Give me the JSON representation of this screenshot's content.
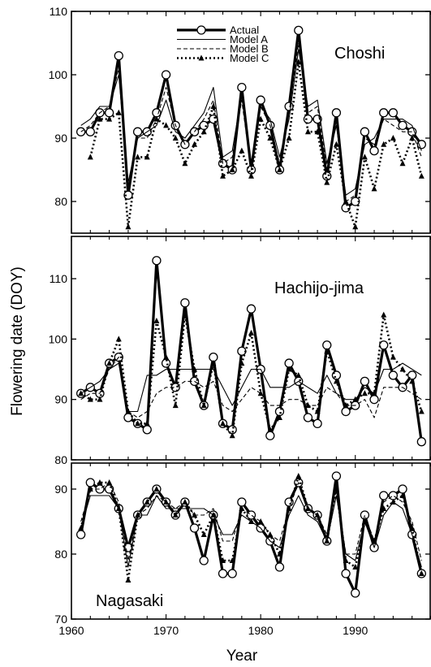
{
  "chart_data": {
    "type": "line",
    "xlabel": "Year",
    "ylabel": "Flowering date (DOY)",
    "xlim": [
      1960,
      1998
    ],
    "x_ticks": [
      1960,
      1970,
      1980,
      1990
    ],
    "x_tick_labels": [
      "1960",
      "1970",
      "1980",
      "1990"
    ],
    "legend": {
      "placement": "top-left",
      "entries": [
        "Actual",
        "Model A",
        "Model B",
        "Model C"
      ]
    },
    "years": [
      1961,
      1962,
      1963,
      1964,
      1965,
      1966,
      1967,
      1968,
      1969,
      1970,
      1971,
      1972,
      1973,
      1974,
      1975,
      1976,
      1977,
      1978,
      1979,
      1980,
      1981,
      1982,
      1983,
      1984,
      1985,
      1986,
      1987,
      1988,
      1989,
      1990,
      1991,
      1992,
      1993,
      1994,
      1995,
      1996,
      1997
    ],
    "panels": [
      {
        "label": "Choshi",
        "ylim": [
          75,
          110
        ],
        "y_ticks": [
          80,
          90,
          100,
          110
        ],
        "y_tick_labels": [
          "80",
          "90",
          "100",
          "110"
        ],
        "series": [
          {
            "name": "Actual",
            "values": [
              91,
              91,
              94,
              94,
              103,
              81,
              91,
              91,
              94,
              100,
              92,
              89,
              91,
              92,
              93,
              86,
              85,
              98,
              85,
              96,
              92,
              85,
              95,
              107,
              93,
              93,
              84,
              94,
              79,
              80,
              91,
              88,
              94,
              94,
              92,
              91,
              89
            ]
          },
          {
            "name": "Model A",
            "values": [
              92,
              93,
              95,
              95,
              100,
              83,
              90,
              91,
              92,
              96,
              91,
              90,
              92,
              94,
              98,
              87,
              88,
              97,
              86,
              95,
              93,
              87,
              93,
              104,
              95,
              96,
              86,
              92,
              81,
              82,
              89,
              90,
              93,
              93,
              93,
              92,
              88
            ]
          },
          {
            "name": "Model B",
            "values": [
              91,
              92,
              94,
              95,
              101,
              82,
              90,
              90,
              93,
              98,
              92,
              89,
              91,
              93,
              96,
              86,
              87,
              96,
              85,
              95,
              92,
              86,
              94,
              105,
              94,
              95,
              85,
              93,
              80,
              81,
              90,
              89,
              93,
              92,
              91,
              91,
              87
            ]
          },
          {
            "name": "Model C",
            "values": [
              null,
              87,
              93,
              93,
              94,
              76,
              87,
              87,
              93,
              92,
              90,
              86,
              89,
              91,
              95,
              84,
              85,
              88,
              84,
              93,
              90,
              85,
              90,
              102,
              91,
              91,
              83,
              89,
              80,
              76,
              87,
              82,
              89,
              90,
              86,
              90,
              84
            ]
          }
        ]
      },
      {
        "label": "Hachijo-jima",
        "ylim": [
          80,
          117
        ],
        "y_ticks": [
          80,
          90,
          100,
          110
        ],
        "y_tick_labels": [
          "80",
          "90",
          "100",
          "110"
        ],
        "series": [
          {
            "name": "Actual",
            "values": [
              91,
              92,
              91,
              96,
              97,
              87,
              86,
              85,
              113,
              96,
              92,
              106,
              93,
              89,
              97,
              86,
              85,
              98,
              105,
              95,
              84,
              88,
              96,
              93,
              87,
              86,
              99,
              94,
              88,
              89,
              93,
              90,
              99,
              94,
              92,
              94,
              83
            ]
          },
          {
            "name": "Model A",
            "values": [
              91,
              92,
              93,
              95,
              96,
              88,
              88,
              94,
              94,
              95,
              95,
              95,
              95,
              95,
              95,
              92,
              89,
              92,
              95,
              95,
              92,
              92,
              92,
              93,
              92,
              91,
              94,
              91,
              90,
              90,
              92,
              91,
              95,
              95,
              96,
              95,
              94
            ]
          },
          {
            "name": "Model B",
            "values": [
              90,
              91,
              91,
              95,
              97,
              88,
              87,
              88,
              91,
              92,
              92,
              93,
              93,
              92,
              93,
              89,
              88,
              90,
              92,
              91,
              89,
              89,
              90,
              90,
              89,
              89,
              92,
              91,
              89,
              89,
              90,
              87,
              92,
              92,
              92,
              91,
              90
            ]
          },
          {
            "name": "Model C",
            "values": [
              91,
              90,
              90,
              96,
              100,
              88,
              86,
              86,
              103,
              97,
              89,
              104,
              95,
              89,
              96,
              86,
              84,
              96,
              101,
              91,
              85,
              87,
              95,
              94,
              89,
              88,
              98,
              93,
              89,
              90,
              91,
              91,
              104,
              97,
              95,
              93,
              88
            ]
          }
        ]
      },
      {
        "label": "Nagasaki",
        "ylim": [
          70,
          94
        ],
        "y_ticks": [
          70,
          80,
          90
        ],
        "y_tick_labels": [
          "70",
          "80",
          "90"
        ],
        "series": [
          {
            "name": "Actual",
            "values": [
              83,
              91,
              90,
              90,
              87,
              81,
              86,
              88,
              90,
              88,
              86,
              88,
              84,
              79,
              86,
              77,
              77,
              88,
              86,
              84,
              82,
              78,
              88,
              91,
              87,
              86,
              82,
              92,
              77,
              74,
              86,
              81,
              89,
              89,
              90,
              83,
              77
            ]
          },
          {
            "name": "Model A",
            "values": [
              84,
              89,
              89,
              89,
              87,
              78,
              86,
              86,
              89,
              87,
              87,
              87,
              87,
              87,
              86,
              83,
              83,
              86,
              85,
              84,
              82,
              81,
              86,
              89,
              86,
              85,
              82,
              89,
              80,
              79,
              85,
              81,
              86,
              88,
              87,
              83,
              78
            ]
          },
          {
            "name": "Model B",
            "values": [
              85,
              90,
              90,
              91,
              88,
              79,
              86,
              87,
              89,
              88,
              87,
              88,
              86,
              86,
              87,
              82,
              82,
              87,
              86,
              85,
              83,
              82,
              87,
              91,
              87,
              86,
              83,
              90,
              80,
              80,
              86,
              82,
              88,
              89,
              88,
              85,
              79
            ]
          },
          {
            "name": "Model C",
            "values": [
              84,
              90,
              91,
              91,
              87,
              76,
              86,
              88,
              90,
              88,
              86,
              88,
              86,
              83,
              86,
              79,
              79,
              87,
              85,
              85,
              83,
              80,
              87,
              92,
              87,
              86,
              82,
              90,
              79,
              78,
              85,
              82,
              87,
              88,
              89,
              84,
              77
            ]
          }
        ]
      }
    ]
  }
}
